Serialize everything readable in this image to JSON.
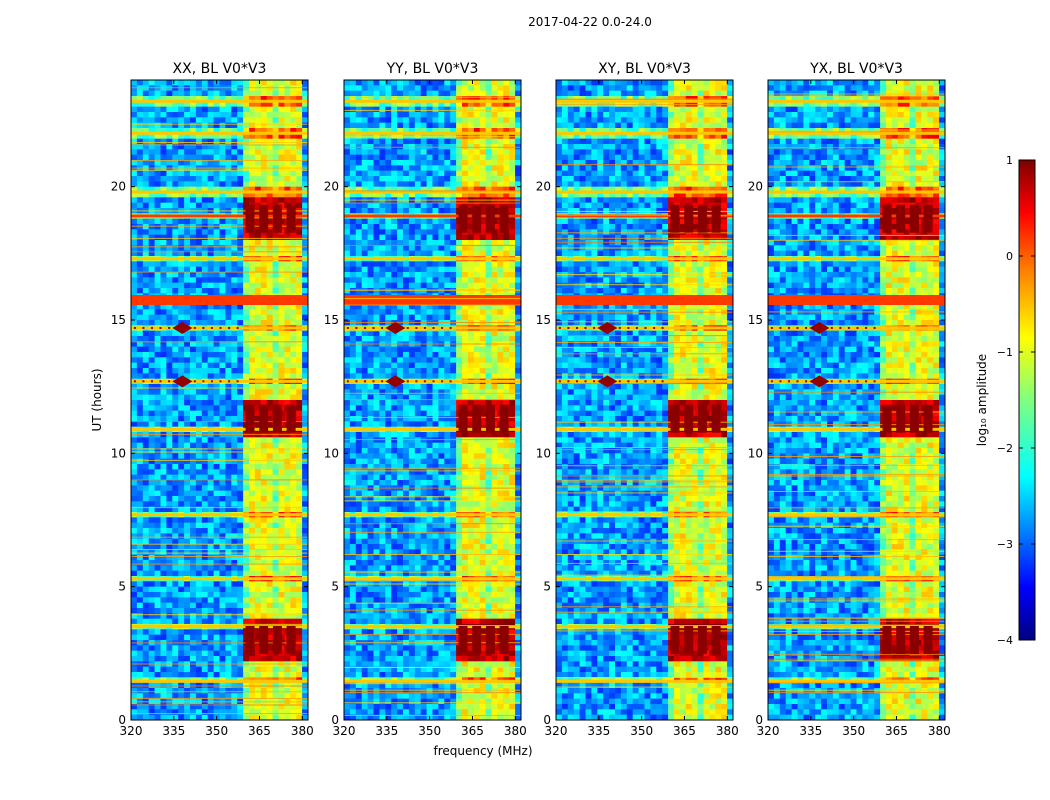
{
  "chart_data": {
    "type": "heatmap",
    "title": "2017-04-22 0.0-24.0",
    "xlabel": "frequency (MHz)",
    "ylabel": "UT (hours)",
    "xlim": [
      320,
      382
    ],
    "ylim": [
      0,
      24
    ],
    "xticks": [
      320,
      335,
      350,
      365,
      380
    ],
    "yticks": [
      0,
      5,
      10,
      15,
      20
    ],
    "colorbar": {
      "label": "log₁₀ amplitude",
      "range": [
        -4,
        1
      ],
      "ticks": [
        -4,
        -3,
        -2,
        -1,
        0,
        1
      ],
      "tick_labels": [
        "−4",
        "−3",
        "−2",
        "−1",
        "0",
        "1"
      ],
      "colormap": "jet"
    },
    "panels": [
      {
        "id": "xx",
        "label": "XX, BL V0*V3"
      },
      {
        "id": "yy",
        "label": "YY, BL V0*V3"
      },
      {
        "id": "xy",
        "label": "XY, BL V0*V3"
      },
      {
        "id": "yx",
        "label": "YX, BL V0*V3"
      }
    ],
    "features": {
      "bright_band_mhz": [
        360,
        380
      ],
      "bright_band_level": -1.0,
      "background_level": -2.6,
      "horizontal_stripes_hours": [
        1.45,
        3.5,
        5.3,
        7.7,
        10.9,
        12.7,
        14.7,
        15.75,
        17.3,
        18.9,
        19.8,
        22.0,
        23.2
      ],
      "intense_spots_hours": [
        3.0,
        11.3,
        18.8
      ],
      "dotted_lines_hours": [
        12.7,
        14.7
      ]
    },
    "colors": {
      "jet": [
        "#00007f",
        "#0000ff",
        "#007fff",
        "#00ffff",
        "#7fff7f",
        "#ffff00",
        "#ff7f00",
        "#ff0000",
        "#7f0000"
      ]
    }
  }
}
